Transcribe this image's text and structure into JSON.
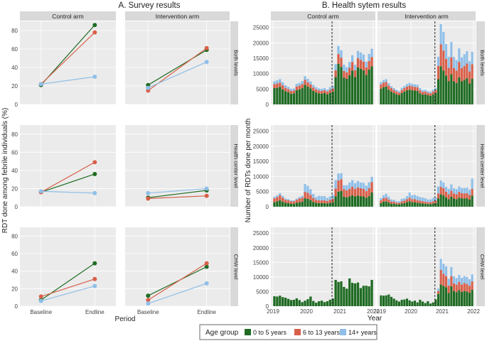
{
  "chart_data": [
    {
      "type": "line",
      "panel_label": "A. Survey results",
      "ylabel": "RDT done among febrile individuals (%)",
      "xlabel": "Period",
      "categories": [
        "Baseline",
        "Endline"
      ],
      "yticks": [
        0,
        20,
        40,
        60,
        80
      ],
      "ylim": [
        0,
        90
      ],
      "columns": [
        "Control arm",
        "Intervention arm"
      ],
      "rows": [
        "Both levels",
        "Health center level",
        "CHW level"
      ],
      "panels": [
        {
          "row": 0,
          "col": 0,
          "series": [
            {
              "name": "0 to 5 years",
              "values": [
                21,
                86
              ]
            },
            {
              "name": "6 to 13 years",
              "values": [
                22,
                78
              ]
            },
            {
              "name": "14+ years",
              "values": [
                22,
                30
              ]
            }
          ]
        },
        {
          "row": 0,
          "col": 1,
          "series": [
            {
              "name": "0 to 5 years",
              "values": [
                21,
                59
              ]
            },
            {
              "name": "6 to 13 years",
              "values": [
                15,
                61
              ]
            },
            {
              "name": "14+ years",
              "values": [
                18,
                46
              ]
            }
          ]
        },
        {
          "row": 1,
          "col": 0,
          "series": [
            {
              "name": "0 to 5 years",
              "values": [
                16,
                36
              ]
            },
            {
              "name": "6 to 13 years",
              "values": [
                16,
                49
              ]
            },
            {
              "name": "14+ years",
              "values": [
                17,
                15
              ]
            }
          ]
        },
        {
          "row": 1,
          "col": 1,
          "series": [
            {
              "name": "0 to 5 years",
              "values": [
                10,
                18
              ]
            },
            {
              "name": "6 to 13 years",
              "values": [
                9,
                12
              ]
            },
            {
              "name": "14+ years",
              "values": [
                15,
                20
              ]
            }
          ]
        },
        {
          "row": 2,
          "col": 0,
          "series": [
            {
              "name": "0 to 5 years",
              "values": [
                7,
                49
              ]
            },
            {
              "name": "6 to 13 years",
              "values": [
                11,
                31
              ]
            },
            {
              "name": "14+ years",
              "values": [
                6,
                23
              ]
            }
          ]
        },
        {
          "row": 2,
          "col": 1,
          "series": [
            {
              "name": "0 to 5 years",
              "values": [
                12,
                45
              ]
            },
            {
              "name": "6 to 13 years",
              "values": [
                7,
                49
              ]
            },
            {
              "name": "14+ years",
              "values": [
                3,
                26
              ]
            }
          ]
        }
      ]
    },
    {
      "type": "bar",
      "stacked": true,
      "panel_label": "B. Health sytem results",
      "ylabel": "Number of RDTs done per month",
      "xlabel": "Year",
      "x_start_year": 2019,
      "xticks": [
        "2019",
        "2020",
        "2021",
        "2022"
      ],
      "yticks": [
        0,
        5000,
        10000,
        15000,
        20000,
        25000
      ],
      "ylim": [
        0,
        27000
      ],
      "intervention_month_index": 21,
      "columns": [
        "Control arm",
        "Intervention arm"
      ],
      "rows": [
        "Both levels",
        "Health center level",
        "CHW level"
      ],
      "panels": [
        {
          "row": 0,
          "col": 0,
          "a0": [
            5300,
            5400,
            5700,
            4900,
            4300,
            4000,
            3500,
            3600,
            4600,
            4900,
            5300,
            6400,
            5800,
            5200,
            4400,
            3900,
            3600,
            3500,
            3700,
            3300,
            3800,
            4200,
            8900,
            13200,
            12200,
            8700,
            8300,
            9500,
            11000,
            8900,
            12000,
            11600,
            11100,
            9600,
            11300,
            12400
          ],
          "a6": [
            1300,
            1400,
            1400,
            1300,
            1100,
            1000,
            900,
            900,
            1200,
            1200,
            1300,
            1600,
            1400,
            1300,
            1100,
            1000,
            900,
            900,
            900,
            900,
            1000,
            1000,
            2200,
            3200,
            3000,
            2200,
            2100,
            2400,
            2800,
            2200,
            3000,
            2900,
            2800,
            2400,
            2800,
            3000
          ],
          "a14": [
            900,
            1000,
            1100,
            1000,
            800,
            700,
            700,
            700,
            900,
            900,
            1000,
            1200,
            1100,
            1000,
            800,
            700,
            700,
            700,
            700,
            700,
            800,
            800,
            2000,
            2600,
            2400,
            2000,
            1700,
            1900,
            2200,
            1800,
            2400,
            2400,
            2300,
            1900,
            2300,
            2700
          ]
        },
        {
          "row": 0,
          "col": 1,
          "a0": [
            5100,
            5600,
            5800,
            4800,
            4200,
            3700,
            3300,
            3000,
            3700,
            4200,
            4600,
            4800,
            4600,
            4500,
            4400,
            3600,
            3200,
            3300,
            3000,
            2800,
            3300,
            3700,
            8200,
            12400,
            11000,
            9400,
            7600,
            9800,
            7500,
            7000,
            8800,
            7500,
            8000,
            8500,
            6800,
            8300
          ],
          "a6": [
            1400,
            1500,
            1500,
            1300,
            1100,
            1000,
            900,
            800,
            1000,
            1100,
            1200,
            1300,
            1300,
            1200,
            1200,
            1000,
            900,
            900,
            800,
            800,
            900,
            1000,
            4300,
            7100,
            6500,
            5400,
            4300,
            5500,
            4300,
            4000,
            5000,
            4300,
            4500,
            4800,
            3900,
            4800
          ],
          "a14": [
            800,
            800,
            900,
            800,
            600,
            600,
            600,
            500,
            700,
            700,
            800,
            900,
            800,
            800,
            800,
            700,
            600,
            600,
            500,
            500,
            600,
            600,
            3000,
            6600,
            6000,
            4800,
            3600,
            5000,
            3600,
            3400,
            4400,
            3500,
            3800,
            4000,
            3300,
            4000
          ]
        },
        {
          "row": 1,
          "col": 0,
          "a0": [
            1500,
            1800,
            2100,
            1700,
            1300,
            1200,
            1000,
            1000,
            1300,
            1500,
            1700,
            2800,
            2600,
            2200,
            1600,
            1300,
            1200,
            1200,
            1200,
            1100,
            1300,
            1500,
            3400,
            5000,
            5200,
            3300,
            3100,
            3400,
            3800,
            3400,
            3700,
            3500,
            3400,
            3000,
            3500,
            4700
          ],
          "a6": [
            1300,
            1400,
            1700,
            1300,
            1000,
            900,
            800,
            800,
            1000,
            1200,
            1300,
            2100,
            2000,
            1700,
            1300,
            1000,
            900,
            900,
            900,
            800,
            1000,
            1100,
            2600,
            3700,
            3900,
            2500,
            2300,
            2500,
            2800,
            2500,
            2700,
            2600,
            2500,
            2200,
            2600,
            3400
          ],
          "a14": [
            500,
            600,
            700,
            600,
            400,
            400,
            300,
            300,
            400,
            500,
            600,
            2600,
            2300,
            1900,
            1300,
            900,
            1500,
            1400,
            1400,
            1000,
            1100,
            1300,
            2800,
            2300,
            2000,
            1300,
            1700,
            2100,
            2200,
            1900,
            2100,
            1900,
            2000,
            1800,
            2000,
            1800
          ]
        },
        {
          "row": 1,
          "col": 1,
          "a0": [
            1200,
            1700,
            1800,
            1400,
            1000,
            1000,
            800,
            800,
            1100,
            1200,
            1500,
            1800,
            1500,
            1500,
            1300,
            1200,
            1100,
            1000,
            900,
            900,
            1100,
            1200,
            2700,
            4100,
            3800,
            3100,
            2500,
            3300,
            2700,
            2500,
            3000,
            2800,
            2700,
            2800,
            2400,
            3700
          ],
          "a6": [
            900,
            1100,
            1200,
            1000,
            700,
            700,
            500,
            500,
            700,
            800,
            1000,
            1200,
            1000,
            1000,
            900,
            800,
            700,
            700,
            600,
            600,
            700,
            800,
            1700,
            2500,
            2300,
            1900,
            1600,
            2000,
            1700,
            1600,
            1900,
            1700,
            1700,
            1700,
            1500,
            2200
          ],
          "a14": [
            800,
            1000,
            1300,
            900,
            700,
            600,
            500,
            500,
            800,
            800,
            1000,
            1700,
            1300,
            1400,
            1300,
            1200,
            1200,
            1100,
            900,
            900,
            1100,
            1100,
            2300,
            2100,
            1900,
            1600,
            1800,
            2100,
            1700,
            1700,
            1800,
            1700,
            1800,
            1800,
            1700,
            3400
          ]
        },
        {
          "row": 2,
          "col": 0,
          "a0": [
            3400,
            3300,
            3600,
            3100,
            2900,
            2500,
            2100,
            2200,
            2700,
            2100,
            1400,
            1900,
            2400,
            3300,
            1800,
            1200,
            1700,
            1900,
            1400,
            1700,
            2200,
            2600,
            9000,
            8300,
            8500,
            6600,
            6000,
            9500,
            8000,
            7800,
            8100,
            6200,
            7000,
            7000,
            6800,
            9000
          ],
          "a6": [
            0,
            0,
            0,
            0,
            0,
            0,
            0,
            0,
            0,
            0,
            0,
            0,
            0,
            0,
            0,
            0,
            0,
            0,
            0,
            0,
            0,
            0,
            0,
            0,
            0,
            0,
            0,
            0,
            0,
            0,
            0,
            0,
            0,
            0,
            0,
            0
          ],
          "a14": [
            0,
            0,
            0,
            0,
            0,
            0,
            0,
            0,
            0,
            0,
            0,
            0,
            0,
            0,
            0,
            0,
            0,
            0,
            0,
            0,
            0,
            0,
            0,
            0,
            0,
            0,
            0,
            0,
            0,
            0,
            0,
            0,
            0,
            0,
            0,
            0
          ]
        },
        {
          "row": 2,
          "col": 1,
          "a0": [
            3700,
            3600,
            3700,
            4000,
            3200,
            2600,
            2000,
            1600,
            2200,
            2300,
            2600,
            2000,
            1600,
            1900,
            1300,
            2200,
            1600,
            1100,
            1700,
            900,
            1300,
            2300,
            4200,
            7400,
            7000,
            6500,
            4500,
            6800,
            5200,
            4800,
            5500,
            4900,
            5200,
            5000,
            4600,
            5600
          ],
          "a6": [
            0,
            0,
            0,
            0,
            0,
            0,
            0,
            0,
            0,
            0,
            0,
            0,
            0,
            0,
            0,
            0,
            0,
            0,
            0,
            0,
            0,
            0,
            1000,
            5000,
            4100,
            3800,
            2600,
            3500,
            2600,
            2500,
            2800,
            2500,
            2700,
            2600,
            2400,
            2900
          ],
          "a14": [
            0,
            0,
            0,
            0,
            0,
            0,
            0,
            0,
            0,
            0,
            0,
            0,
            0,
            0,
            0,
            0,
            0,
            0,
            0,
            0,
            0,
            0,
            800,
            3800,
            3400,
            3300,
            2300,
            3100,
            2400,
            2300,
            2400,
            2300,
            2400,
            2400,
            2200,
            2400
          ]
        }
      ]
    }
  ],
  "legend": {
    "title": "Age group",
    "entries": [
      {
        "label": "0 to 5 years",
        "color": "#1f6b23"
      },
      {
        "label": "6 to 13 years",
        "color": "#d8604a"
      },
      {
        "label": "14+ years",
        "color": "#8fbfe8"
      }
    ]
  },
  "colors": {
    "a0": "#1f6b23",
    "a6": "#d8604a",
    "a14": "#8fbfe8",
    "panel": "#ebebeb",
    "strip": "#d9d9d9",
    "grid": "#ffffff"
  }
}
